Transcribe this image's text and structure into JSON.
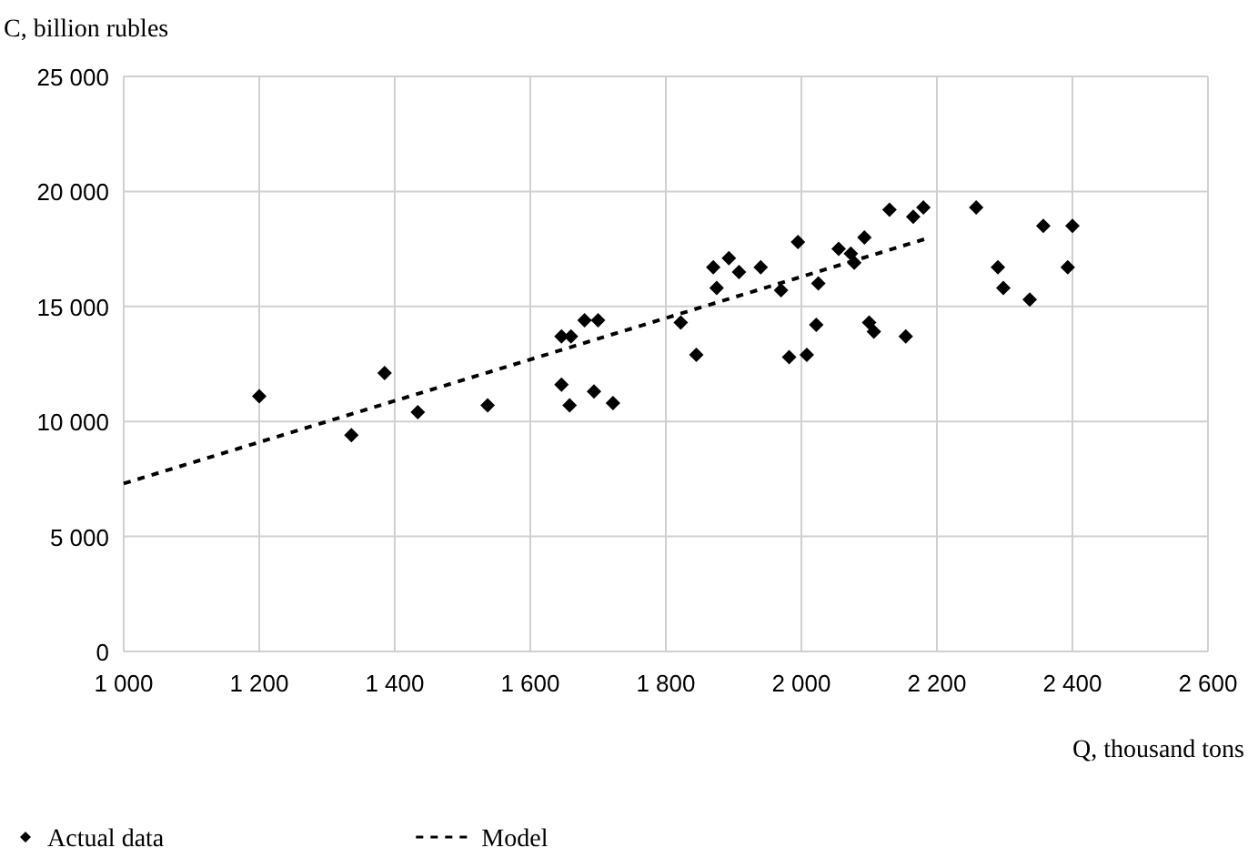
{
  "chart_data": {
    "type": "scatter",
    "xlabel": "Q, thousand tons",
    "ylabel": "C, billion rubles",
    "xlim": [
      1000,
      2600
    ],
    "ylim": [
      0,
      25000
    ],
    "xticks": [
      {
        "value": 1000,
        "label": "1 000"
      },
      {
        "value": 1200,
        "label": "1 200"
      },
      {
        "value": 1400,
        "label": "1 400"
      },
      {
        "value": 1600,
        "label": "1 600"
      },
      {
        "value": 1800,
        "label": "1 800"
      },
      {
        "value": 2000,
        "label": "2 000"
      },
      {
        "value": 2200,
        "label": "2 200"
      },
      {
        "value": 2400,
        "label": "2 400"
      },
      {
        "value": 2600,
        "label": "2 600"
      }
    ],
    "yticks": [
      0,
      {
        "value": 5000,
        "label": "5 000"
      },
      {
        "value": 10000,
        "label": "10 000"
      },
      {
        "value": 15000,
        "label": "15 000"
      },
      {
        "value": 20000,
        "label": "20 000"
      },
      {
        "value": 25000,
        "label": "25 000"
      }
    ],
    "grid": true,
    "legend": "bottom",
    "series": [
      {
        "name": "Actual data",
        "color": "#000000",
        "marker": "diamond",
        "x": [
          1200,
          1336,
          1385,
          1434,
          1537,
          1646,
          1658,
          1646,
          1660,
          1680,
          1700,
          1694,
          1722,
          1822,
          1845,
          1870,
          1875,
          1893,
          1908,
          1940,
          1970,
          1982,
          1995,
          2008,
          2022,
          2025,
          2055,
          2073,
          2078,
          2093,
          2100,
          2107,
          2130,
          2154,
          2165,
          2180,
          2258,
          2290,
          2298,
          2337,
          2357,
          2393,
          2400
        ],
        "values": [
          11100,
          9400,
          12100,
          10400,
          10700,
          11600,
          10700,
          13700,
          13700,
          14400,
          14400,
          11300,
          10800,
          14300,
          12900,
          16700,
          15800,
          17100,
          16500,
          16700,
          15700,
          12800,
          17800,
          12900,
          14200,
          16000,
          17500,
          17300,
          16900,
          18000,
          14300,
          13900,
          19200,
          13700,
          18900,
          19300,
          19300,
          16700,
          15800,
          15300,
          18500,
          16700,
          18500
        ]
      },
      {
        "name": "Model",
        "type": "line",
        "color": "#000000",
        "line_style": "dashed",
        "x": [
          1000,
          2190
        ],
        "values": [
          7300,
          18000
        ]
      }
    ]
  }
}
